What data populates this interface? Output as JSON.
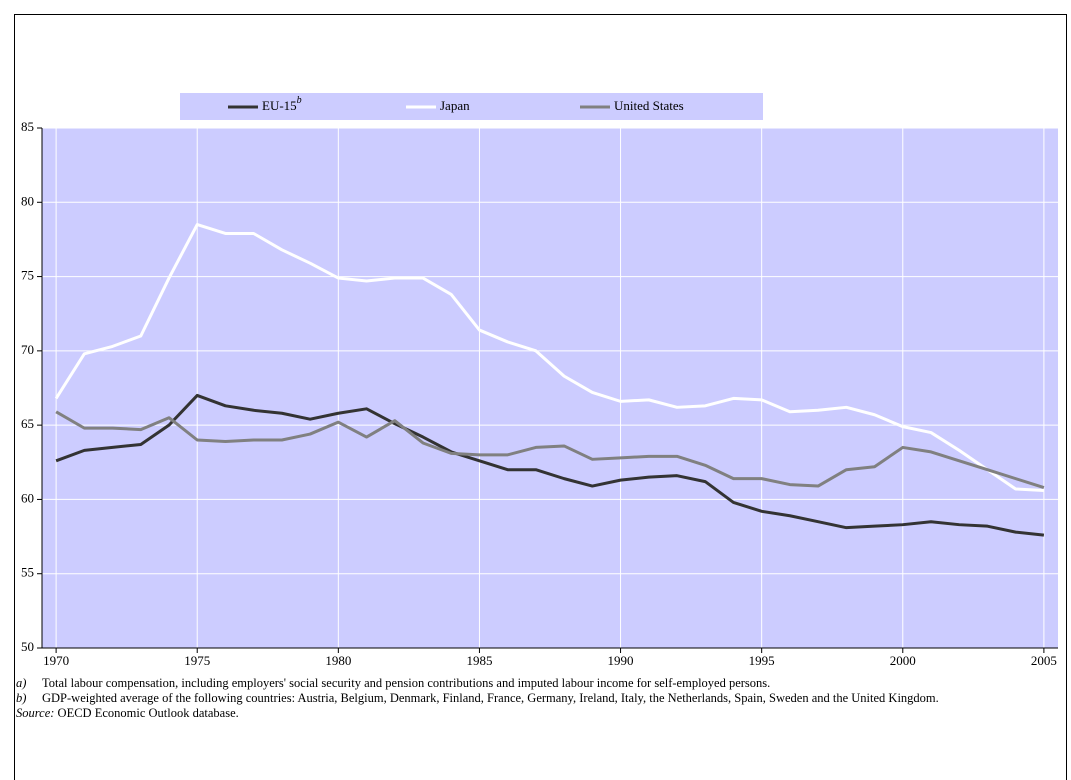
{
  "chart_data": {
    "type": "line",
    "x": [
      1970,
      1971,
      1972,
      1973,
      1974,
      1975,
      1976,
      1977,
      1978,
      1979,
      1980,
      1981,
      1982,
      1983,
      1984,
      1985,
      1986,
      1987,
      1988,
      1989,
      1990,
      1991,
      1992,
      1993,
      1994,
      1995,
      1996,
      1997,
      1998,
      1999,
      2000,
      2001,
      2002,
      2003,
      2004,
      2005
    ],
    "series": [
      {
        "name": "EU-15",
        "name_superscript": "b",
        "color": "#333333",
        "values": [
          62.6,
          63.3,
          63.5,
          63.7,
          65.0,
          67.0,
          66.3,
          66.0,
          65.8,
          65.4,
          65.8,
          66.1,
          65.1,
          64.2,
          63.2,
          62.6,
          62.0,
          62.0,
          61.4,
          60.9,
          61.3,
          61.5,
          61.6,
          61.2,
          59.8,
          59.2,
          58.9,
          58.5,
          58.1,
          58.2,
          58.3,
          58.5,
          58.3,
          58.2,
          57.8,
          57.6
        ]
      },
      {
        "name": "Japan",
        "color": "#ffffff",
        "values": [
          66.8,
          69.8,
          70.3,
          71.0,
          74.9,
          78.5,
          77.9,
          77.9,
          76.8,
          75.9,
          74.9,
          74.7,
          74.9,
          74.9,
          73.8,
          71.4,
          70.6,
          70.0,
          68.3,
          67.2,
          66.6,
          66.7,
          66.2,
          66.3,
          66.8,
          66.7,
          65.9,
          66.0,
          66.2,
          65.7,
          64.9,
          64.5,
          63.3,
          62.0,
          60.7,
          60.6
        ]
      },
      {
        "name": "United States",
        "color": "#808080",
        "values": [
          65.9,
          64.8,
          64.8,
          64.7,
          65.5,
          64.0,
          63.9,
          64.0,
          64.0,
          64.4,
          65.2,
          64.2,
          65.3,
          63.8,
          63.1,
          63.0,
          63.0,
          63.5,
          63.6,
          62.7,
          62.8,
          62.9,
          62.9,
          62.3,
          61.4,
          61.4,
          61.0,
          60.9,
          62.0,
          62.2,
          63.5,
          63.2,
          62.6,
          62.0,
          61.4,
          60.8
        ]
      }
    ],
    "xlim": [
      1969.5,
      2005.5
    ],
    "xticks": [
      1970,
      1975,
      1980,
      1985,
      1990,
      1995,
      2000,
      2005
    ],
    "ylim": [
      50,
      85
    ],
    "yticks": [
      50,
      55,
      60,
      65,
      70,
      75,
      80,
      85
    ],
    "grid": true,
    "plot_background": "#ccccff",
    "legend": "top"
  },
  "notes": [
    {
      "marker": "a)",
      "text": "Total labour compensation, including employers' social security and pension contributions and imputed labour income for self-employed persons."
    },
    {
      "marker": "b)",
      "text": "GDP-weighted average of the following countries: Austria, Belgium, Denmark, Finland, France, Germany, Ireland, Italy, the Netherlands, Spain, Sweden and the United Kingdom."
    }
  ],
  "source": {
    "label": "Source:",
    "text": "OECD Economic Outlook database."
  }
}
